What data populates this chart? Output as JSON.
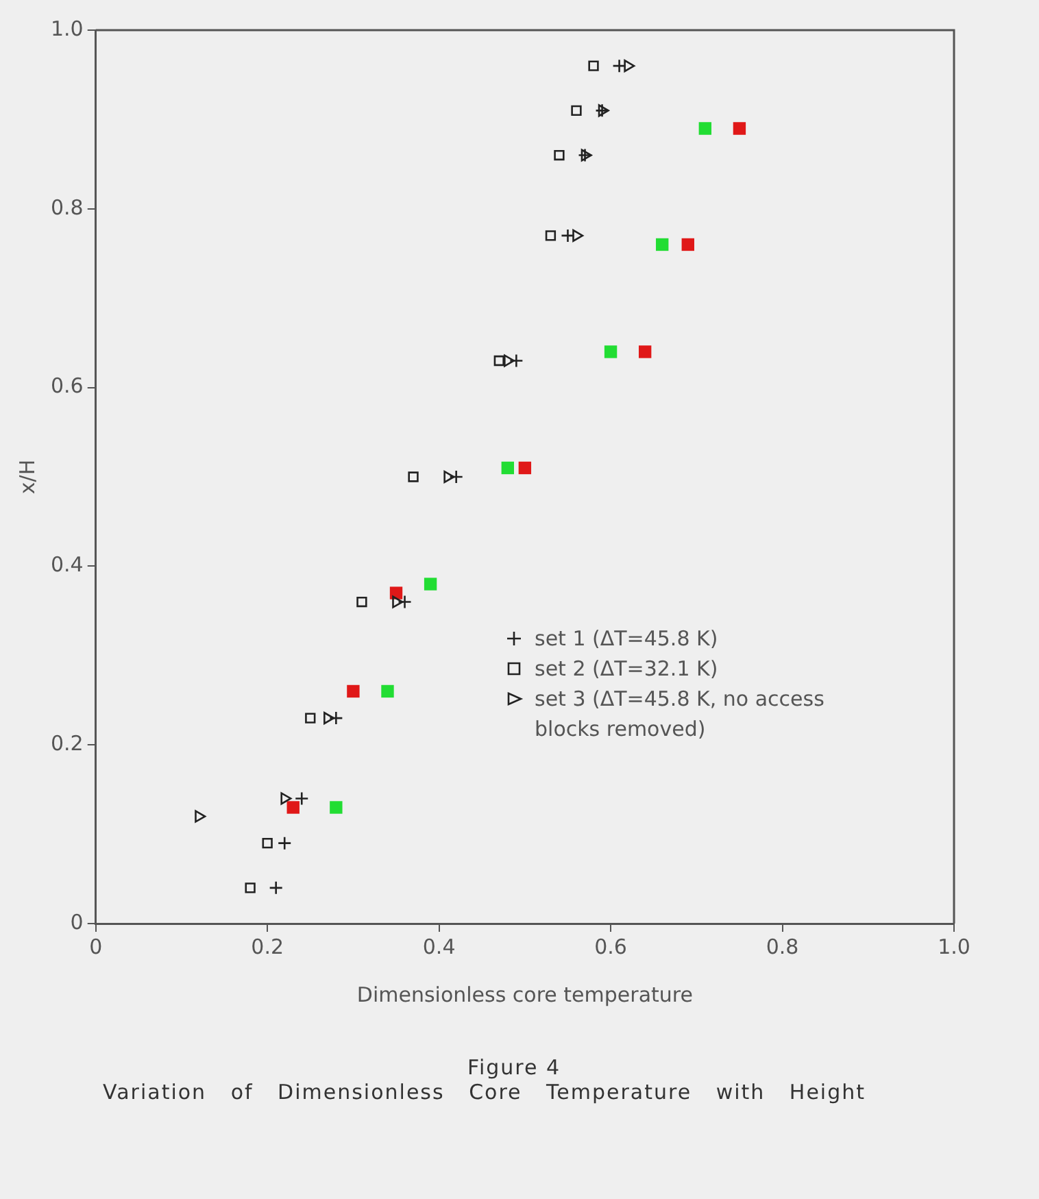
{
  "chart_data": {
    "type": "scatter",
    "title": "Figure 4",
    "subtitle": "Variation of Dimensionless Core Temperature with Height",
    "xlabel": "Dimensionless core temperature",
    "ylabel": "x/H",
    "xlim": [
      0,
      1
    ],
    "ylim": [
      0,
      1
    ],
    "xticks": [
      0,
      0.2,
      0.4,
      0.6,
      0.8,
      {
        "value": 1,
        "label": "1.0"
      }
    ],
    "yticks": [
      0,
      0.2,
      0.4,
      0.6,
      0.8,
      {
        "value": 1,
        "label": "1.0"
      }
    ],
    "grid": false,
    "legend": "bottom right",
    "series": [
      {
        "name": "set 1 (ΔT=45.8 K)",
        "color": "#222222",
        "marker": "cross",
        "x": [
          0.61,
          0.59,
          0.57,
          0.55,
          0.49,
          0.42,
          0.36,
          0.28,
          0.24,
          0.22,
          0.21
        ],
        "values": [
          0.96,
          0.91,
          0.86,
          0.77,
          0.63,
          0.5,
          0.36,
          0.23,
          0.14,
          0.09,
          0.04
        ]
      },
      {
        "name": "set 2 (ΔT=32.1 K)",
        "color": "#222222",
        "marker": "square",
        "x": [
          0.58,
          0.56,
          0.54,
          0.53,
          0.47,
          0.37,
          0.31,
          0.25,
          0.2,
          0.18
        ],
        "values": [
          0.96,
          0.91,
          0.86,
          0.77,
          0.63,
          0.5,
          0.36,
          0.23,
          0.09,
          0.04
        ]
      },
      {
        "name": "set 3 (ΔT=45.8 K, no access blocks removed)",
        "color": "#222222",
        "marker": "triangle",
        "x": [
          0.62,
          0.59,
          0.57,
          0.56,
          0.48,
          0.41,
          0.35,
          0.27,
          0.22,
          0.12
        ],
        "values": [
          0.96,
          0.91,
          0.86,
          0.77,
          0.63,
          0.5,
          0.36,
          0.23,
          0.14,
          0.12
        ]
      },
      {
        "color": "#e01818",
        "marker": "square",
        "x": [
          0.75,
          0.69,
          0.64,
          0.5,
          0.35,
          0.3,
          0.23
        ],
        "values": [
          0.89,
          0.76,
          0.64,
          0.51,
          0.37,
          0.26,
          0.13
        ]
      },
      {
        "color": "#22dd33",
        "marker": "square",
        "x": [
          0.71,
          0.66,
          0.6,
          0.48,
          0.39,
          0.34,
          0.28
        ],
        "values": [
          0.89,
          0.76,
          0.64,
          0.51,
          0.38,
          0.26,
          0.13
        ]
      }
    ]
  }
}
